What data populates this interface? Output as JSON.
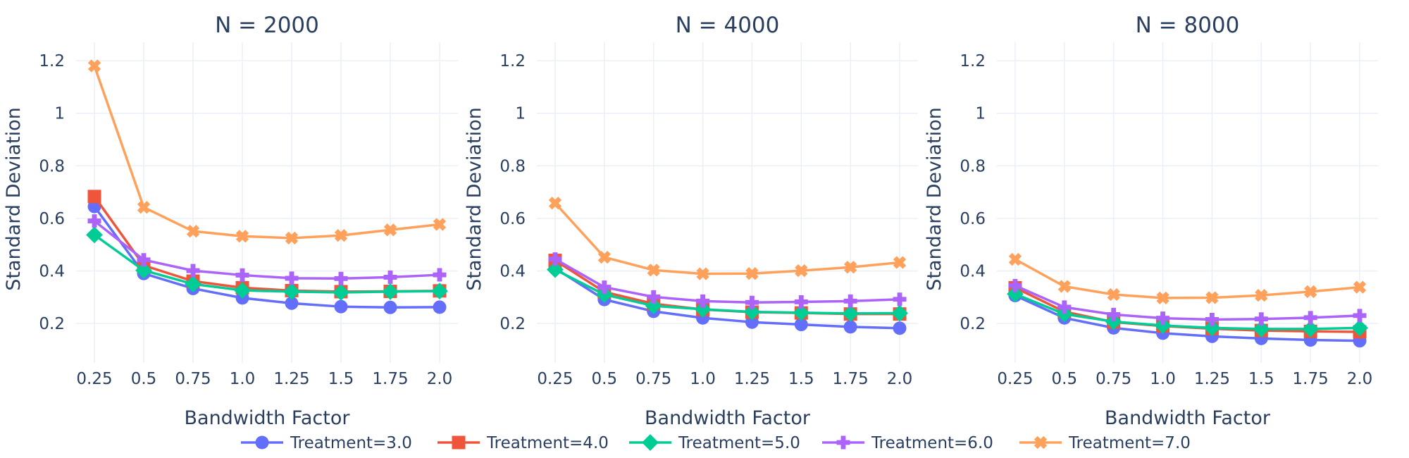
{
  "chart_data": [
    {
      "type": "line",
      "title": "N = 2000",
      "xlabel": "Bandwidth Factor",
      "ylabel": "Standard Deviation",
      "categories": [
        "0.25",
        "0.5",
        "0.75",
        "1.0",
        "1.25",
        "1.5",
        "1.75",
        "2.0"
      ],
      "ylim": [
        0.05,
        1.27
      ],
      "yticks": [
        "0.2",
        "0.4",
        "0.6",
        "0.8",
        "1",
        "1.2"
      ],
      "grid": true,
      "series": [
        {
          "name": "Treatment=3.0",
          "values": [
            0.645,
            0.39,
            0.333,
            0.297,
            0.277,
            0.264,
            0.261,
            0.262
          ]
        },
        {
          "name": "Treatment=4.0",
          "values": [
            0.683,
            0.421,
            0.361,
            0.336,
            0.325,
            0.321,
            0.322,
            0.324
          ]
        },
        {
          "name": "Treatment=5.0",
          "values": [
            0.537,
            0.402,
            0.35,
            0.326,
            0.321,
            0.318,
            0.321,
            0.323
          ]
        },
        {
          "name": "Treatment=6.0",
          "values": [
            0.59,
            0.442,
            0.401,
            0.384,
            0.372,
            0.371,
            0.376,
            0.385
          ]
        },
        {
          "name": "Treatment=7.0",
          "values": [
            1.18,
            0.642,
            0.551,
            0.532,
            0.525,
            0.535,
            0.556,
            0.577
          ]
        }
      ]
    },
    {
      "type": "line",
      "title": "N = 4000",
      "xlabel": "Bandwidth Factor",
      "ylabel": "Standard Deviation",
      "categories": [
        "0.25",
        "0.5",
        "0.75",
        "1.0",
        "1.25",
        "1.5",
        "1.75",
        "2.0"
      ],
      "ylim": [
        0.05,
        1.27
      ],
      "yticks": [
        "0.2",
        "0.4",
        "0.6",
        "0.8",
        "1",
        "1.2"
      ],
      "grid": true,
      "series": [
        {
          "name": "Treatment=3.0",
          "values": [
            0.41,
            0.291,
            0.246,
            0.221,
            0.205,
            0.196,
            0.187,
            0.182
          ]
        },
        {
          "name": "Treatment=4.0",
          "values": [
            0.44,
            0.32,
            0.275,
            0.253,
            0.243,
            0.24,
            0.236,
            0.236
          ]
        },
        {
          "name": "Treatment=5.0",
          "values": [
            0.405,
            0.31,
            0.267,
            0.254,
            0.244,
            0.241,
            0.238,
            0.239
          ]
        },
        {
          "name": "Treatment=6.0",
          "values": [
            0.445,
            0.338,
            0.301,
            0.285,
            0.28,
            0.282,
            0.285,
            0.292
          ]
        },
        {
          "name": "Treatment=7.0",
          "values": [
            0.658,
            0.452,
            0.403,
            0.389,
            0.39,
            0.401,
            0.414,
            0.432
          ]
        }
      ]
    },
    {
      "type": "line",
      "title": "N = 8000",
      "xlabel": "Bandwidth Factor",
      "ylabel": "Standard Deviation",
      "categories": [
        "0.25",
        "0.5",
        "0.75",
        "1.0",
        "1.25",
        "1.5",
        "1.75",
        "2.0"
      ],
      "ylim": [
        0.05,
        1.27
      ],
      "yticks": [
        "0.2",
        "0.4",
        "0.6",
        "0.8",
        "1",
        "1.2"
      ],
      "grid": true,
      "series": [
        {
          "name": "Treatment=3.0",
          "values": [
            0.306,
            0.221,
            0.183,
            0.163,
            0.151,
            0.143,
            0.137,
            0.134
          ]
        },
        {
          "name": "Treatment=4.0",
          "values": [
            0.336,
            0.245,
            0.205,
            0.19,
            0.18,
            0.173,
            0.17,
            0.168
          ]
        },
        {
          "name": "Treatment=5.0",
          "values": [
            0.312,
            0.236,
            0.207,
            0.192,
            0.183,
            0.179,
            0.179,
            0.183
          ]
        },
        {
          "name": "Treatment=6.0",
          "values": [
            0.344,
            0.262,
            0.234,
            0.22,
            0.215,
            0.217,
            0.222,
            0.23
          ]
        },
        {
          "name": "Treatment=7.0",
          "values": [
            0.444,
            0.341,
            0.31,
            0.297,
            0.298,
            0.307,
            0.321,
            0.338
          ]
        }
      ]
    }
  ],
  "legend": {
    "placement": "bottom-center",
    "items": [
      {
        "label": "Treatment=3.0",
        "color": "#636efa",
        "symbol": "circle"
      },
      {
        "label": "Treatment=4.0",
        "color": "#ef553b",
        "symbol": "square"
      },
      {
        "label": "Treatment=5.0",
        "color": "#00cc96",
        "symbol": "diamond"
      },
      {
        "label": "Treatment=6.0",
        "color": "#ab63fa",
        "symbol": "cross"
      },
      {
        "label": "Treatment=7.0",
        "color": "#ffa15a",
        "symbol": "x"
      }
    ]
  }
}
